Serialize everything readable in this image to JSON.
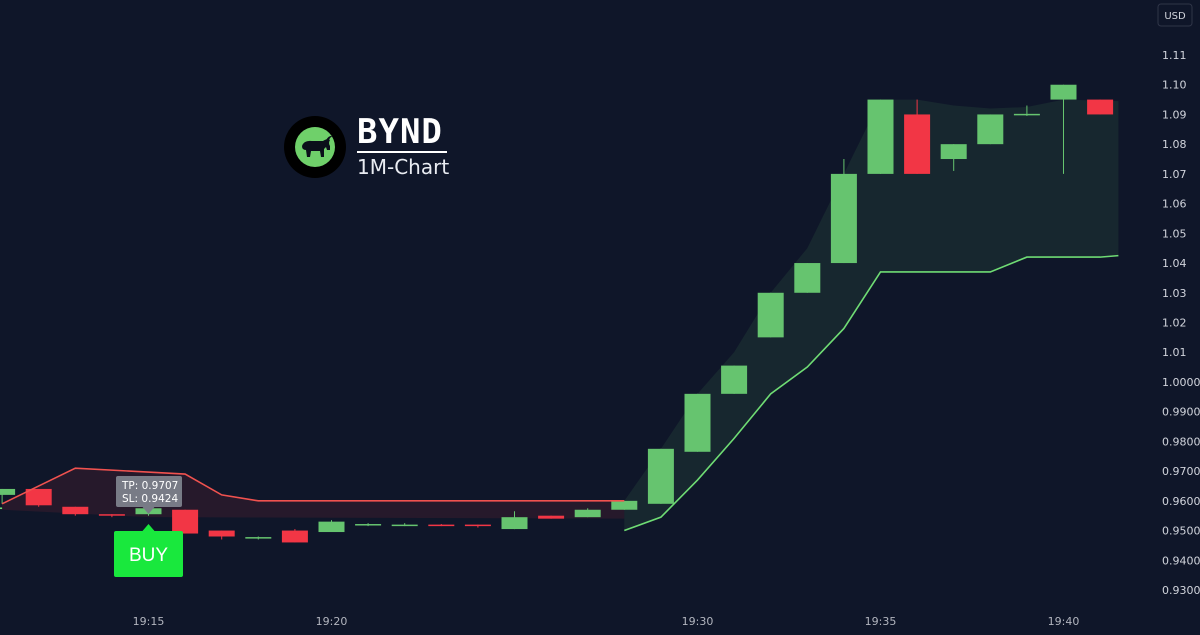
{
  "chart_data": {
    "type": "candlestick",
    "ticker": "BYND",
    "timeframe": "1M-Chart",
    "currency": "USD",
    "y_ticks": [
      "1.11",
      "1.10",
      "1.09",
      "1.08",
      "1.07",
      "1.06",
      "1.05",
      "1.04",
      "1.03",
      "1.02",
      "1.01",
      "1.0000",
      "0.9900",
      "0.9800",
      "0.9700",
      "0.9600",
      "0.9500",
      "0.9400",
      "0.9300"
    ],
    "ylim": [
      0.925,
      1.115
    ],
    "x_ticks": [
      {
        "label": "19:15",
        "minute": 15
      },
      {
        "label": "19:20",
        "minute": 20
      },
      {
        "label": "19:30",
        "minute": 30
      },
      {
        "label": "19:35",
        "minute": 35
      },
      {
        "label": "19:40",
        "minute": 40
      }
    ],
    "time_start": "19:11",
    "candles": [
      {
        "t": 11,
        "o": 0.962,
        "h": 0.964,
        "l": 0.959,
        "c": 0.964
      },
      {
        "t": 12,
        "o": 0.964,
        "h": 0.964,
        "l": 0.958,
        "c": 0.9585
      },
      {
        "t": 13,
        "o": 0.958,
        "h": 0.958,
        "l": 0.955,
        "c": 0.9555
      },
      {
        "t": 14,
        "o": 0.9555,
        "h": 0.9555,
        "l": 0.9545,
        "c": 0.955
      },
      {
        "t": 15,
        "o": 0.9555,
        "h": 0.958,
        "l": 0.955,
        "c": 0.9575
      },
      {
        "t": 16,
        "o": 0.957,
        "h": 0.957,
        "l": 0.949,
        "c": 0.949
      },
      {
        "t": 17,
        "o": 0.95,
        "h": 0.95,
        "l": 0.947,
        "c": 0.948
      },
      {
        "t": 18,
        "o": 0.9475,
        "h": 0.948,
        "l": 0.947,
        "c": 0.9478
      },
      {
        "t": 19,
        "o": 0.95,
        "h": 0.9505,
        "l": 0.946,
        "c": 0.946
      },
      {
        "t": 20,
        "o": 0.9495,
        "h": 0.9535,
        "l": 0.9495,
        "c": 0.953
      },
      {
        "t": 21,
        "o": 0.952,
        "h": 0.9525,
        "l": 0.9515,
        "c": 0.9522
      },
      {
        "t": 22,
        "o": 0.952,
        "h": 0.9525,
        "l": 0.9515,
        "c": 0.952
      },
      {
        "t": 23,
        "o": 0.952,
        "h": 0.9522,
        "l": 0.9515,
        "c": 0.9518
      },
      {
        "t": 24,
        "o": 0.952,
        "h": 0.952,
        "l": 0.951,
        "c": 0.9515
      },
      {
        "t": 25,
        "o": 0.9505,
        "h": 0.9565,
        "l": 0.9505,
        "c": 0.9545
      },
      {
        "t": 26,
        "o": 0.955,
        "h": 0.955,
        "l": 0.954,
        "c": 0.954
      },
      {
        "t": 27,
        "o": 0.9545,
        "h": 0.9575,
        "l": 0.9545,
        "c": 0.957
      },
      {
        "t": 28,
        "o": 0.957,
        "h": 0.96,
        "l": 0.957,
        "c": 0.96
      },
      {
        "t": 29,
        "o": 0.959,
        "h": 0.9775,
        "l": 0.959,
        "c": 0.9775
      },
      {
        "t": 30,
        "o": 0.9765,
        "h": 0.996,
        "l": 0.9765,
        "c": 0.996
      },
      {
        "t": 31,
        "o": 0.996,
        "h": 1.0055,
        "l": 0.996,
        "c": 1.0055
      },
      {
        "t": 32,
        "o": 1.015,
        "h": 1.03,
        "l": 1.015,
        "c": 1.03
      },
      {
        "t": 33,
        "o": 1.03,
        "h": 1.04,
        "l": 1.03,
        "c": 1.04
      },
      {
        "t": 34,
        "o": 1.04,
        "h": 1.075,
        "l": 1.04,
        "c": 1.07
      },
      {
        "t": 35,
        "o": 1.07,
        "h": 1.095,
        "l": 1.07,
        "c": 1.095
      },
      {
        "t": 36,
        "o": 1.09,
        "h": 1.095,
        "l": 1.07,
        "c": 1.07
      },
      {
        "t": 37,
        "o": 1.075,
        "h": 1.08,
        "l": 1.071,
        "c": 1.08
      },
      {
        "t": 38,
        "o": 1.08,
        "h": 1.09,
        "l": 1.08,
        "c": 1.09
      },
      {
        "t": 39,
        "o": 1.0898,
        "h": 1.093,
        "l": 1.0895,
        "c": 1.0902
      },
      {
        "t": 40,
        "o": 1.095,
        "h": 1.1,
        "l": 1.07,
        "c": 1.1
      },
      {
        "t": 41,
        "o": 1.095,
        "h": 1.095,
        "l": 1.09,
        "c": 1.09
      }
    ],
    "stop_line": {
      "color": "#f0524f",
      "points": [
        [
          11,
          0.959
        ],
        [
          13,
          0.971
        ],
        [
          16,
          0.969
        ],
        [
          17,
          0.962
        ],
        [
          18,
          0.96
        ],
        [
          28,
          0.96
        ]
      ]
    },
    "trail_line": {
      "color": "#6fdc74",
      "points": [
        [
          28,
          0.95
        ],
        [
          29,
          0.9545
        ],
        [
          30,
          0.967
        ],
        [
          31,
          0.981
        ],
        [
          32,
          0.996
        ],
        [
          33,
          1.005
        ],
        [
          34,
          1.018
        ],
        [
          35,
          1.037
        ],
        [
          38,
          1.037
        ],
        [
          39,
          1.042
        ],
        [
          41,
          1.042
        ],
        [
          41.5,
          1.0425
        ]
      ]
    },
    "pre_line": {
      "color": "#6fdc74",
      "points": [
        [
          10.6,
          0.9575
        ],
        [
          11,
          0.9575
        ]
      ]
    },
    "signal": {
      "label": "BUY",
      "t": 15,
      "tp_text": "TP: 0.9707",
      "sl_text": "SL: 0.9424"
    },
    "colors": {
      "background": "#0f1629",
      "up": "#66c46f",
      "down": "#f23645",
      "buy": "#19e83d",
      "tooltip": "#787b86"
    }
  }
}
